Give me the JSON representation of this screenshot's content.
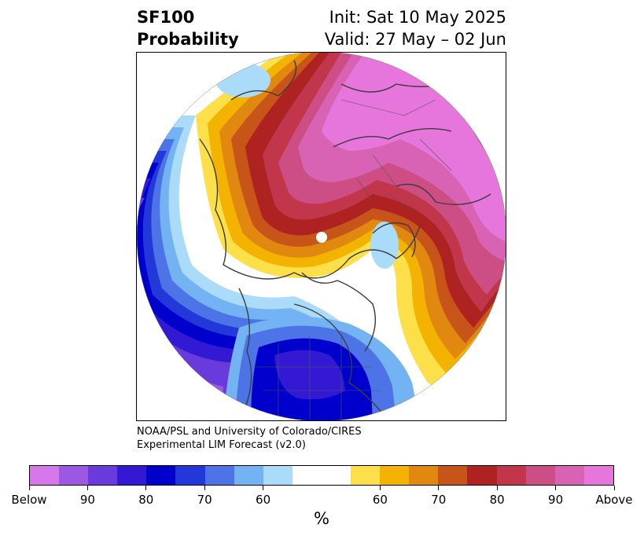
{
  "header": {
    "title_line1": "SF100",
    "title_line2": "Probability",
    "init": "Init: Sat 10 May 2025",
    "valid": "Valid: 27 May – 02 Jun"
  },
  "credit": {
    "line1": "NOAA/PSL and University of Colorado/CIRES",
    "line2": "Experimental LIM Forecast (v2.0)"
  },
  "colorbar": {
    "unit": "%",
    "colors": [
      "#d677ea",
      "#9b59e3",
      "#6a3bdc",
      "#3319d3",
      "#0000cd",
      "#2338d9",
      "#4c74e6",
      "#73b2f3",
      "#aadcfa",
      "#ffffff",
      "#ffffff",
      "#fde049",
      "#f3b300",
      "#e08810",
      "#c75418",
      "#ae2222",
      "#c2364c",
      "#cc4e84",
      "#d863b4",
      "#e676dc"
    ],
    "ticks": [
      {
        "label": "Below",
        "index": 0
      },
      {
        "label": "90",
        "index": 2
      },
      {
        "label": "80",
        "index": 4
      },
      {
        "label": "70",
        "index": 6
      },
      {
        "label": "60",
        "index": 8
      },
      {
        "label": "60",
        "index": 12
      },
      {
        "label": "70",
        "index": 14
      },
      {
        "label": "80",
        "index": 16
      },
      {
        "label": "90",
        "index": 18
      },
      {
        "label": "Above",
        "index": 20
      }
    ]
  }
}
